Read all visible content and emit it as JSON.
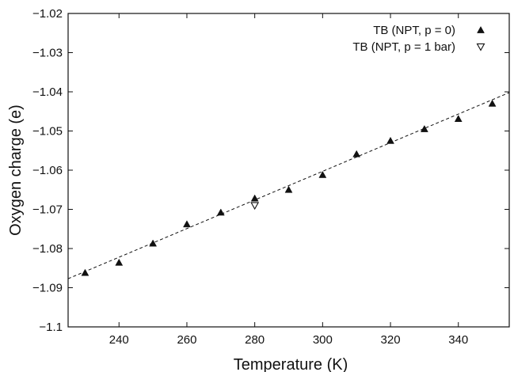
{
  "chart_data": {
    "type": "scatter",
    "title": "",
    "xlabel": "Temperature (K)",
    "ylabel": "Oxygen charge (e)",
    "xlim": [
      225,
      355
    ],
    "ylim": [
      -1.1,
      -1.02
    ],
    "x_ticks": [
      240,
      260,
      280,
      300,
      320,
      340
    ],
    "x_tick_labels": [
      "240",
      "260",
      "280",
      "300",
      "320",
      "340"
    ],
    "y_ticks": [
      -1.1,
      -1.09,
      -1.08,
      -1.07,
      -1.06,
      -1.05,
      -1.04,
      -1.03,
      -1.02
    ],
    "y_tick_labels": [
      "−1.1",
      "−1.09",
      "−1.08",
      "−1.07",
      "−1.06",
      "−1.05",
      "−1.04",
      "−1.03",
      "−1.02"
    ],
    "grid": false,
    "legend_position": "top-right",
    "series": [
      {
        "name": "TB (NPT, p = 0)",
        "marker": "triangle-up-filled",
        "color": "#111111",
        "points": [
          {
            "x": 230,
            "y": -1.0862
          },
          {
            "x": 240,
            "y": -1.0836
          },
          {
            "x": 250,
            "y": -1.0787
          },
          {
            "x": 260,
            "y": -1.0738
          },
          {
            "x": 270,
            "y": -1.0708
          },
          {
            "x": 280,
            "y": -1.0672
          },
          {
            "x": 290,
            "y": -1.065
          },
          {
            "x": 300,
            "y": -1.0612
          },
          {
            "x": 310,
            "y": -1.0559
          },
          {
            "x": 320,
            "y": -1.0525
          },
          {
            "x": 330,
            "y": -1.0495
          },
          {
            "x": 340,
            "y": -1.0469
          },
          {
            "x": 350,
            "y": -1.043
          }
        ]
      },
      {
        "name": "TB (NPT, p = 1 bar)",
        "marker": "triangle-down-open",
        "color": "#111111",
        "points": [
          {
            "x": 280,
            "y": -1.069
          }
        ]
      }
    ],
    "fit_line": {
      "style": "dashed",
      "color": "#111111",
      "points": [
        {
          "x": 225,
          "y": -1.0877
        },
        {
          "x": 355,
          "y": -1.0402
        }
      ]
    }
  }
}
